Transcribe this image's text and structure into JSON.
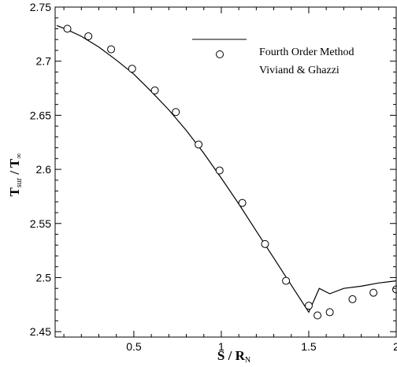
{
  "chart_data": {
    "type": "line",
    "xlim": [
      0.05,
      2.0
    ],
    "ylim": [
      2.445,
      2.75
    ],
    "x_ticks": [
      {
        "value": 0.5,
        "label": "0.5"
      },
      {
        "value": 1.0,
        "label": "1"
      },
      {
        "value": 1.5,
        "label": "1.5"
      },
      {
        "value": 2.0,
        "label": "2"
      }
    ],
    "y_ticks": [
      {
        "value": 2.45,
        "label": "2.45"
      },
      {
        "value": 2.5,
        "label": "2.5"
      },
      {
        "value": 2.55,
        "label": "2.55"
      },
      {
        "value": 2.6,
        "label": "2.6"
      },
      {
        "value": 2.65,
        "label": "2.65"
      },
      {
        "value": 2.7,
        "label": "2.7"
      },
      {
        "value": 2.75,
        "label": "2.75"
      }
    ],
    "xlabel": {
      "main": "S / R",
      "sub": "N"
    },
    "ylabel": {
      "main1": "T",
      "sub1": "sur",
      "sep": " / ",
      "main2": "T",
      "sub2": "∞"
    },
    "grid": false,
    "legend_position": "top-right",
    "series": [
      {
        "name": "Fourth Order Method",
        "style": "line",
        "color": "#000000",
        "x": [
          0.06,
          0.12,
          0.2,
          0.3,
          0.4,
          0.5,
          0.6,
          0.7,
          0.8,
          0.9,
          1.0,
          1.1,
          1.2,
          1.3,
          1.4,
          1.5,
          1.56,
          1.62,
          1.7,
          1.8,
          1.9,
          2.0
        ],
        "y": [
          2.733,
          2.729,
          2.723,
          2.713,
          2.701,
          2.688,
          2.672,
          2.655,
          2.636,
          2.615,
          2.592,
          2.568,
          2.543,
          2.518,
          2.493,
          2.468,
          2.49,
          2.485,
          2.49,
          2.492,
          2.495,
          2.497
        ]
      },
      {
        "name": "Viviand & Ghazzi",
        "style": "marker",
        "marker": "circle",
        "color": "#000000",
        "x": [
          0.12,
          0.24,
          0.37,
          0.49,
          0.62,
          0.74,
          0.87,
          0.99,
          1.12,
          1.25,
          1.37,
          1.5,
          1.55,
          1.62,
          1.75,
          1.87,
          2.0
        ],
        "y": [
          2.73,
          2.723,
          2.711,
          2.693,
          2.673,
          2.653,
          2.623,
          2.599,
          2.569,
          2.531,
          2.497,
          2.474,
          2.465,
          2.468,
          2.48,
          2.486,
          2.489
        ]
      }
    ]
  }
}
